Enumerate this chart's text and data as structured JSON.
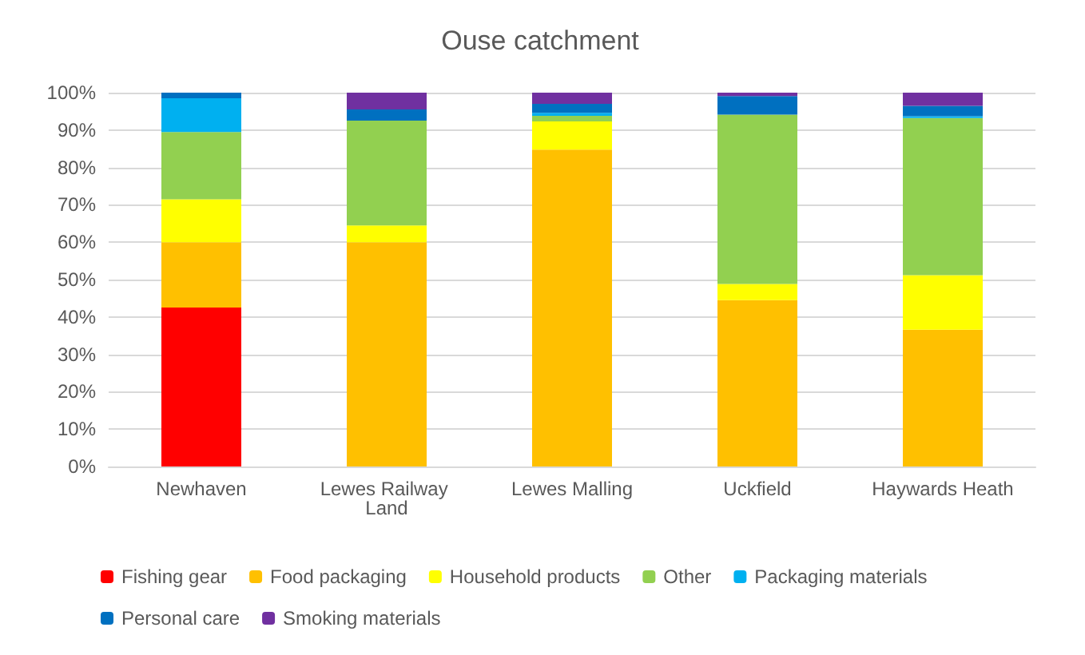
{
  "chart_data": {
    "type": "bar",
    "stacked": true,
    "title": "Ouse catchment",
    "categories": [
      "Newhaven",
      "Lewes Railway Land",
      "Lewes Malling",
      "Uckfield",
      "Haywards Heath"
    ],
    "series": [
      {
        "name": "Fishing gear",
        "color": "#ff0000",
        "values": [
          42.5,
          0,
          0,
          0,
          0
        ]
      },
      {
        "name": "Food packaging",
        "color": "#ffc000",
        "values": [
          17.5,
          60,
          84.8,
          44.5,
          36.6
        ]
      },
      {
        "name": "Household products",
        "color": "#ffff00",
        "values": [
          11.5,
          4.5,
          7.5,
          4.3,
          14.6
        ]
      },
      {
        "name": "Other",
        "color": "#92d050",
        "values": [
          18,
          28,
          1.5,
          45.3,
          42
        ]
      },
      {
        "name": "Packaging materials",
        "color": "#00b0f0",
        "values": [
          9,
          0,
          0.8,
          0,
          0.5
        ]
      },
      {
        "name": "Personal care",
        "color": "#0070c0",
        "values": [
          1.5,
          3,
          2.4,
          5,
          2.8
        ]
      },
      {
        "name": "Smoking materials",
        "color": "#7030a0",
        "values": [
          0,
          4.5,
          3,
          0.9,
          3.5
        ]
      }
    ],
    "ylim": [
      0,
      100
    ],
    "yticks": [
      {
        "value": 0,
        "label": "0%"
      },
      {
        "value": 10,
        "label": "10%"
      },
      {
        "value": 20,
        "label": "20%"
      },
      {
        "value": 30,
        "label": "30%"
      },
      {
        "value": 40,
        "label": "40%"
      },
      {
        "value": 50,
        "label": "50%"
      },
      {
        "value": 60,
        "label": "60%"
      },
      {
        "value": 70,
        "label": "70%"
      },
      {
        "value": 80,
        "label": "80%"
      },
      {
        "value": 90,
        "label": "90%"
      },
      {
        "value": 100,
        "label": "100%"
      }
    ],
    "grid": "y",
    "legend": "bottom"
  }
}
